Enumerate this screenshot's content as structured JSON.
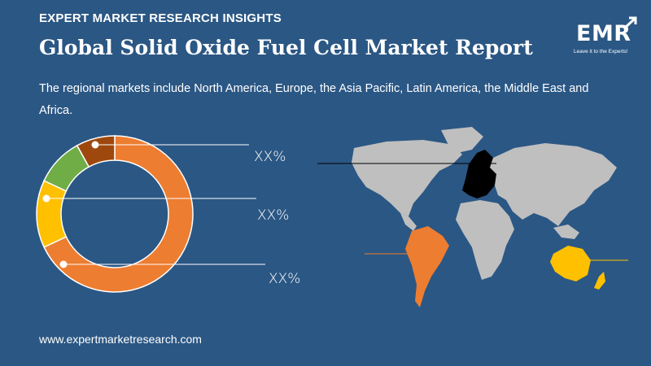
{
  "header": {
    "kicker": "EXPERT MARKET RESEARCH INSIGHTS",
    "title": "Global Solid Oxide Fuel Cell Market Report",
    "description": "The regional markets include North America, Europe, the Asia Pacific, Latin America, the Middle East and Africa."
  },
  "logo": {
    "text": "EMR",
    "tagline": "Leave it to the Experts!"
  },
  "footer": {
    "url": "www.expertmarketresearch.com"
  },
  "colors": {
    "background": "#2b5784",
    "orange": "#ed7d31",
    "yellow": "#ffc000",
    "green": "#70ad47",
    "brown": "#9e480e",
    "map_land": "#bfbfbf",
    "europe": "#000000"
  },
  "chart_data": {
    "type": "donut",
    "segments": [
      {
        "color": "#ed7d31",
        "value": 68
      },
      {
        "color": "#ffc000",
        "value": 14
      },
      {
        "color": "#70ad47",
        "value": 10
      },
      {
        "color": "#9e480e",
        "value": 8
      }
    ],
    "labels": [
      "XX%",
      "XX%",
      "XX%"
    ]
  }
}
